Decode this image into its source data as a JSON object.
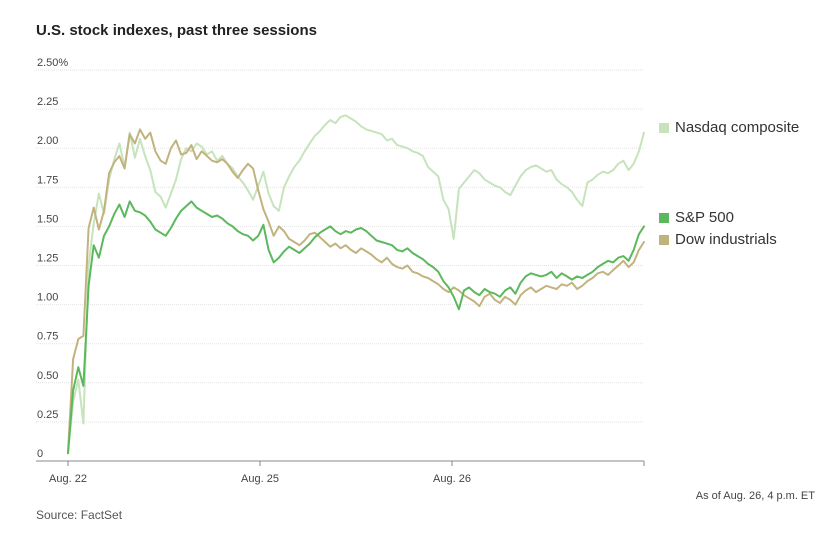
{
  "chart_data": {
    "type": "line",
    "title": "U.S. stock indexes, past three sessions",
    "xlabel": "",
    "ylabel": "",
    "x_ticks": [
      "Aug. 22",
      "Aug. 25",
      "Aug. 26"
    ],
    "y_ticks": [
      "2.50%",
      "2.25",
      "2.00",
      "1.75",
      "1.50",
      "1.25",
      "1.00",
      "0.75",
      "0.50",
      "0.25",
      "0"
    ],
    "ylim": [
      0,
      2.5
    ],
    "grid": "horizontal",
    "legend_position": "right",
    "note": "As of Aug. 26, 4 p.m. ET",
    "source": "Source: FactSet",
    "sessions": [
      "Aug. 22",
      "Aug. 25",
      "Aug. 26"
    ],
    "series": [
      {
        "name": "Nasdaq composite",
        "color": "#c6e3bc",
        "values": [
          0.05,
          0.38,
          0.52,
          0.24,
          1.25,
          1.52,
          1.71,
          1.58,
          1.8,
          1.93,
          2.03,
          1.88,
          2.1,
          1.94,
          2.06,
          1.95,
          1.86,
          1.72,
          1.69,
          1.62,
          1.71,
          1.8,
          1.93,
          2.0,
          1.98,
          2.03,
          2.01,
          1.96,
          1.98,
          1.92,
          1.95,
          1.9,
          1.87,
          1.82,
          1.78,
          1.73,
          1.67,
          1.76,
          1.85,
          1.71,
          1.63,
          1.6,
          1.75,
          1.82,
          1.88,
          1.92,
          1.98,
          2.03,
          2.08,
          2.11,
          2.15,
          2.18,
          2.16,
          2.2,
          2.21,
          2.19,
          2.17,
          2.14,
          2.12,
          2.11,
          2.1,
          2.09,
          2.05,
          2.06,
          2.02,
          2.01,
          2.0,
          1.98,
          1.97,
          1.95,
          1.88,
          1.85,
          1.82,
          1.67,
          1.61,
          1.42,
          1.74,
          1.78,
          1.82,
          1.86,
          1.84,
          1.8,
          1.78,
          1.76,
          1.75,
          1.72,
          1.7,
          1.76,
          1.82,
          1.86,
          1.88,
          1.89,
          1.87,
          1.85,
          1.86,
          1.8,
          1.77,
          1.75,
          1.72,
          1.67,
          1.63,
          1.78,
          1.8,
          1.83,
          1.85,
          1.84,
          1.86,
          1.9,
          1.92,
          1.86,
          1.9,
          1.98,
          2.1
        ]
      },
      {
        "name": "S&P 500",
        "color": "#5cb85c",
        "values": [
          0.05,
          0.45,
          0.6,
          0.48,
          1.12,
          1.38,
          1.3,
          1.44,
          1.5,
          1.58,
          1.64,
          1.56,
          1.66,
          1.6,
          1.59,
          1.57,
          1.53,
          1.48,
          1.46,
          1.44,
          1.49,
          1.55,
          1.6,
          1.63,
          1.66,
          1.62,
          1.6,
          1.58,
          1.56,
          1.57,
          1.55,
          1.52,
          1.5,
          1.47,
          1.45,
          1.44,
          1.41,
          1.44,
          1.51,
          1.35,
          1.27,
          1.3,
          1.34,
          1.37,
          1.35,
          1.33,
          1.36,
          1.39,
          1.43,
          1.46,
          1.48,
          1.5,
          1.47,
          1.45,
          1.47,
          1.46,
          1.48,
          1.49,
          1.47,
          1.44,
          1.41,
          1.4,
          1.39,
          1.38,
          1.35,
          1.34,
          1.36,
          1.33,
          1.31,
          1.29,
          1.26,
          1.24,
          1.21,
          1.15,
          1.11,
          1.05,
          0.97,
          1.09,
          1.11,
          1.08,
          1.06,
          1.1,
          1.08,
          1.07,
          1.05,
          1.09,
          1.11,
          1.07,
          1.14,
          1.18,
          1.2,
          1.19,
          1.18,
          1.19,
          1.21,
          1.17,
          1.2,
          1.18,
          1.16,
          1.18,
          1.17,
          1.19,
          1.21,
          1.24,
          1.26,
          1.28,
          1.27,
          1.3,
          1.31,
          1.28,
          1.35,
          1.45,
          1.5
        ]
      },
      {
        "name": "Dow industrials",
        "color": "#c2b37e",
        "values": [
          0.05,
          0.65,
          0.78,
          0.8,
          1.49,
          1.62,
          1.48,
          1.6,
          1.84,
          1.91,
          1.95,
          1.87,
          2.09,
          2.03,
          2.12,
          2.06,
          2.1,
          1.98,
          1.92,
          1.9,
          2.0,
          2.05,
          1.96,
          1.97,
          2.02,
          1.93,
          1.98,
          1.95,
          1.92,
          1.91,
          1.93,
          1.9,
          1.85,
          1.81,
          1.86,
          1.9,
          1.87,
          1.73,
          1.61,
          1.53,
          1.44,
          1.5,
          1.47,
          1.42,
          1.4,
          1.38,
          1.41,
          1.45,
          1.46,
          1.43,
          1.4,
          1.37,
          1.39,
          1.36,
          1.38,
          1.35,
          1.33,
          1.36,
          1.34,
          1.32,
          1.29,
          1.27,
          1.3,
          1.26,
          1.24,
          1.23,
          1.25,
          1.21,
          1.2,
          1.18,
          1.17,
          1.15,
          1.13,
          1.1,
          1.08,
          1.11,
          1.09,
          1.06,
          1.04,
          1.02,
          0.99,
          1.05,
          1.07,
          1.03,
          1.01,
          1.05,
          1.03,
          1.0,
          1.06,
          1.09,
          1.11,
          1.08,
          1.1,
          1.12,
          1.11,
          1.1,
          1.13,
          1.12,
          1.14,
          1.1,
          1.12,
          1.15,
          1.17,
          1.2,
          1.21,
          1.19,
          1.22,
          1.25,
          1.28,
          1.24,
          1.27,
          1.35,
          1.4
        ]
      }
    ]
  }
}
